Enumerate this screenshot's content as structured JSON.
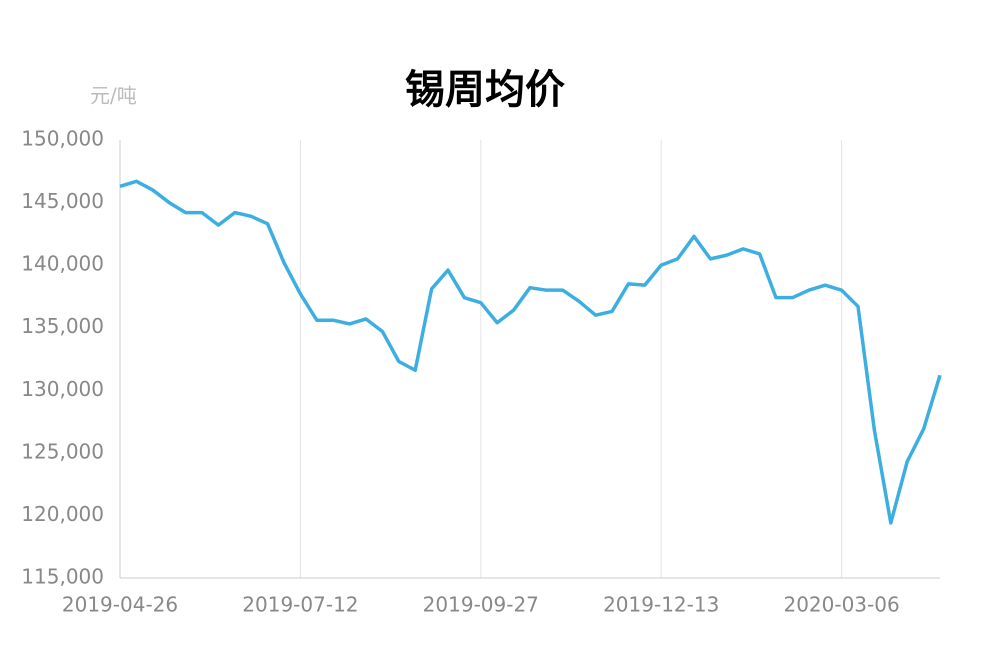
{
  "chart_data": {
    "type": "line",
    "title": "锡周均价",
    "y_label": "元/吨",
    "categories": [
      "2019-04-26",
      null,
      null,
      null,
      null,
      null,
      null,
      null,
      null,
      null,
      null,
      "2019-07-12",
      null,
      null,
      null,
      null,
      null,
      null,
      null,
      null,
      null,
      null,
      "2019-09-27",
      null,
      null,
      null,
      null,
      null,
      null,
      null,
      null,
      null,
      null,
      "2019-12-13",
      null,
      null,
      null,
      null,
      null,
      null,
      null,
      null,
      null,
      null,
      "2020-03-06",
      null,
      null,
      null,
      null,
      null,
      null
    ],
    "series": [
      {
        "name": "锡周均价",
        "color": "#3daee1",
        "values": [
          146300,
          146700,
          146000,
          145000,
          144200,
          144200,
          143200,
          144200,
          143900,
          143300,
          140200,
          137700,
          135600,
          135600,
          135300,
          135700,
          134700,
          132300,
          131600,
          138100,
          139600,
          137400,
          137000,
          135400,
          136400,
          138200,
          138000,
          138000,
          137100,
          136000,
          136300,
          138500,
          138400,
          140000,
          140500,
          142300,
          140500,
          140800,
          141300,
          140900,
          137400,
          137400,
          138000,
          138400,
          138000,
          136700,
          126800,
          119400,
          124300,
          126900,
          131200
        ]
      }
    ],
    "ylim": [
      115000,
      150000
    ],
    "yticks": [
      {
        "value": 115000,
        "label": "115,000"
      },
      {
        "value": 120000,
        "label": "120,000"
      },
      {
        "value": 125000,
        "label": "125,000"
      },
      {
        "value": 130000,
        "label": "130,000"
      },
      {
        "value": 135000,
        "label": "135,000"
      },
      {
        "value": 140000,
        "label": "140,000"
      },
      {
        "value": 145000,
        "label": "145,000"
      },
      {
        "value": 150000,
        "label": "150,000"
      }
    ],
    "grid": true
  }
}
